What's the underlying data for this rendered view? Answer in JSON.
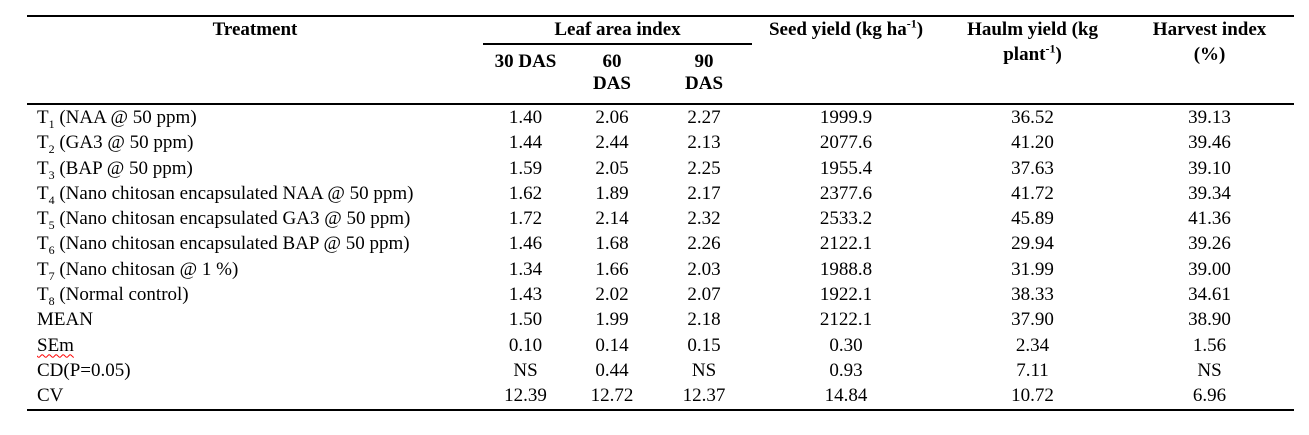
{
  "colors": {
    "page_background": "#ffffff",
    "text": "#000000",
    "table_rules": "#000000",
    "spellcheck_underline": "#ff0000"
  },
  "table": {
    "header": {
      "treatment": "Treatment",
      "leaf_area_index": "Leaf area index",
      "das_columns": [
        {
          "line1": "30 DAS",
          "line2": ""
        },
        {
          "line1": "60",
          "line2": "DAS"
        },
        {
          "line1": "90",
          "line2": "DAS"
        }
      ],
      "seed_yield": {
        "text": "Seed yield (kg ha",
        "sup": "-1",
        "close": ")"
      },
      "haulm_yield": {
        "line1": "Haulm yield (kg",
        "line2": "plant",
        "sup": "-1",
        "close": ")"
      },
      "harvest_index": {
        "line1": "Harvest index",
        "line2": "(%)"
      }
    },
    "rows": [
      {
        "prefix": "T",
        "sub": "1",
        "label": " (NAA @ 50 ppm)",
        "values": [
          "1.40",
          "2.06",
          "2.27",
          "1999.9",
          "36.52",
          "39.13"
        ]
      },
      {
        "prefix": "T",
        "sub": "2",
        "label": " (GA3 @ 50 ppm)",
        "values": [
          "1.44",
          "2.44",
          "2.13",
          "2077.6",
          "41.20",
          "39.46"
        ]
      },
      {
        "prefix": "T",
        "sub": "3",
        "label": " (BAP @ 50 ppm)",
        "values": [
          "1.59",
          "2.05",
          "2.25",
          "1955.4",
          "37.63",
          "39.10"
        ]
      },
      {
        "prefix": "T",
        "sub": "4",
        "label": " (Nano chitosan encapsulated NAA @ 50 ppm)",
        "values": [
          "1.62",
          "1.89",
          "2.17",
          "2377.6",
          "41.72",
          "39.34"
        ]
      },
      {
        "prefix": "T",
        "sub": "5",
        "label": " (Nano chitosan encapsulated GA3 @ 50 ppm)",
        "values": [
          "1.72",
          "2.14",
          "2.32",
          "2533.2",
          "45.89",
          "41.36"
        ]
      },
      {
        "prefix": "T",
        "sub": "6",
        "label": " (Nano chitosan encapsulated BAP @ 50 ppm)",
        "values": [
          "1.46",
          "1.68",
          "2.26",
          "2122.1",
          "29.94",
          "39.26"
        ]
      },
      {
        "prefix": "T",
        "sub": "7",
        "label": " (Nano chitosan @ 1 %)",
        "values": [
          "1.34",
          "1.66",
          "2.03",
          "1988.8",
          "31.99",
          "39.00"
        ]
      },
      {
        "prefix": "T",
        "sub": "8",
        "label": " (Normal control)",
        "values": [
          "1.43",
          "2.02",
          "2.07",
          "1922.1",
          "38.33",
          "34.61"
        ]
      },
      {
        "prefix": "MEAN",
        "sub": "",
        "label": "",
        "values": [
          "1.50",
          "1.99",
          "2.18",
          "2122.1",
          "37.90",
          "38.90"
        ]
      },
      {
        "prefix": "SEm",
        "sub": "",
        "label": "",
        "values": [
          "0.10",
          "0.14",
          "0.15",
          "0.30",
          "2.34",
          "1.56"
        ]
      },
      {
        "prefix": "CD(P=0.05)",
        "sub": "",
        "label": "",
        "values": [
          "NS",
          "0.44",
          "NS",
          "0.93",
          "7.11",
          "NS"
        ]
      },
      {
        "prefix": "CV",
        "sub": "",
        "label": "",
        "values": [
          "12.39",
          "12.72",
          "12.37",
          "14.84",
          "10.72",
          "6.96"
        ]
      }
    ]
  }
}
